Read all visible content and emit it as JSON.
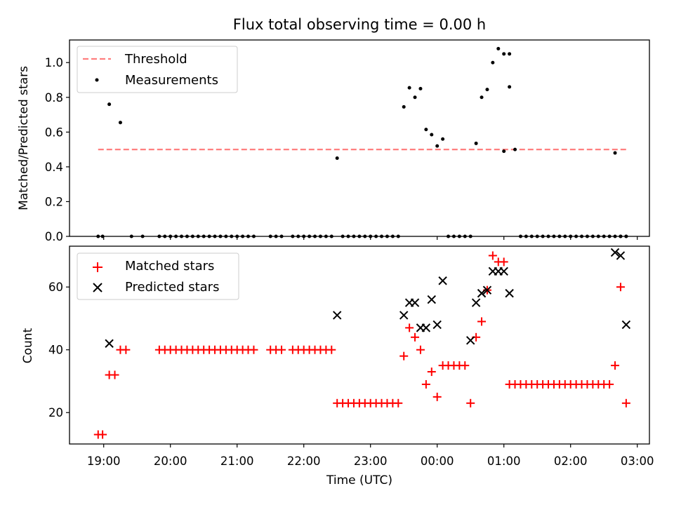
{
  "chart_data": [
    {
      "type": "scatter",
      "title": "Flux total observing time = 0.00 h",
      "xlabel": "",
      "ylabel": "Matched/Predicted stars",
      "ylim": [
        0,
        1.13
      ],
      "yticks": [
        "0.0",
        "0.2",
        "0.4",
        "0.6",
        "0.8",
        "1.0"
      ],
      "ytick_values": [
        0,
        0.2,
        0.4,
        0.6,
        0.8,
        1.0
      ],
      "legend_location": "upper-left",
      "colors": {
        "threshold": "#ff7f7f",
        "measurements": "#000000"
      },
      "series": [
        {
          "name": "Threshold",
          "style": "dashed-line",
          "x": [
            "18:55",
            "02:50"
          ],
          "y": [
            0.5,
            0.5
          ]
        },
        {
          "name": "Measurements",
          "style": "dot",
          "x": [
            "18:55",
            "18:59",
            "19:05",
            "19:15",
            "19:25",
            "19:35",
            "19:50",
            "19:55",
            "20:00",
            "20:05",
            "20:10",
            "20:15",
            "20:20",
            "20:25",
            "20:30",
            "20:35",
            "20:40",
            "20:45",
            "20:50",
            "20:55",
            "21:00",
            "21:05",
            "21:10",
            "21:15",
            "21:30",
            "21:35",
            "21:40",
            "21:50",
            "21:55",
            "22:00",
            "22:05",
            "22:10",
            "22:15",
            "22:20",
            "22:25",
            "22:30",
            "22:35",
            "22:40",
            "22:45",
            "22:50",
            "22:55",
            "23:00",
            "23:05",
            "23:10",
            "23:15",
            "23:20",
            "23:25",
            "23:30",
            "23:35",
            "23:40",
            "23:45",
            "23:50",
            "23:55",
            "00:00",
            "00:05",
            "00:10",
            "00:15",
            "00:20",
            "00:25",
            "00:30",
            "00:35",
            "00:40",
            "00:45",
            "00:50",
            "00:55",
            "01:00",
            "01:05",
            "01:10",
            "01:15",
            "01:20",
            "01:25",
            "01:30",
            "01:35",
            "01:40",
            "01:45",
            "01:50",
            "01:55",
            "02:00",
            "02:05",
            "02:10",
            "02:15",
            "02:20",
            "02:25",
            "02:30",
            "02:35",
            "02:40",
            "02:45",
            "02:50",
            "01:00",
            "01:05",
            "02:40",
            "02:45",
            "02:50"
          ],
          "y": [
            0,
            0,
            0.76,
            0.655,
            0,
            0,
            0,
            0,
            0,
            0,
            0,
            0,
            0,
            0,
            0,
            0,
            0,
            0,
            0,
            0,
            0,
            0,
            0,
            0,
            0,
            0,
            0,
            0,
            0,
            0,
            0,
            0,
            0,
            0,
            0,
            0.45,
            0,
            0,
            0,
            0,
            0,
            0,
            0,
            0,
            0,
            0,
            0,
            0.745,
            0.855,
            0.8,
            0.85,
            0.615,
            0.585,
            0.52,
            0.56,
            0,
            0,
            0,
            0,
            0,
            0.535,
            0.8,
            0.845,
            1.0,
            1.08,
            1.05,
            1.05,
            0.5,
            0,
            0,
            0,
            0,
            0,
            0,
            0,
            0,
            0,
            0,
            0,
            0,
            0,
            0,
            0,
            0,
            0,
            0,
            0,
            0,
            0.49,
            0.86,
            0.48,
            0,
            0
          ]
        }
      ]
    },
    {
      "type": "scatter",
      "title": "",
      "xlabel": "Time (UTC)",
      "ylabel": "Count",
      "ylim": [
        10,
        73
      ],
      "yticks": [
        "20",
        "40",
        "60"
      ],
      "ytick_values": [
        20,
        40,
        60
      ],
      "xticks": [
        "19:00",
        "20:00",
        "21:00",
        "22:00",
        "23:00",
        "00:00",
        "01:00",
        "02:00",
        "03:00"
      ],
      "legend_location": "upper-left",
      "colors": {
        "matched": "#ff0000",
        "predicted": "#000000"
      },
      "series": [
        {
          "name": "Matched stars",
          "marker": "+",
          "x": [
            "18:55",
            "18:59",
            "19:05",
            "19:10",
            "19:15",
            "19:20",
            "19:50",
            "19:55",
            "20:00",
            "20:05",
            "20:10",
            "20:15",
            "20:20",
            "20:25",
            "20:30",
            "20:35",
            "20:40",
            "20:45",
            "20:50",
            "20:55",
            "21:00",
            "21:05",
            "21:10",
            "21:15",
            "21:30",
            "21:35",
            "21:40",
            "21:50",
            "21:55",
            "22:00",
            "22:05",
            "22:10",
            "22:15",
            "22:20",
            "22:25",
            "22:30",
            "22:35",
            "22:40",
            "22:45",
            "22:50",
            "22:55",
            "23:00",
            "23:05",
            "23:10",
            "23:15",
            "23:20",
            "23:25",
            "23:30",
            "23:35",
            "23:40",
            "23:45",
            "23:50",
            "23:55",
            "00:00",
            "00:05",
            "00:10",
            "00:15",
            "00:20",
            "00:25",
            "00:30",
            "00:35",
            "00:40",
            "00:45",
            "00:50",
            "00:55",
            "01:00",
            "01:05",
            "01:10",
            "01:15",
            "01:20",
            "01:25",
            "01:30",
            "01:35",
            "01:40",
            "01:45",
            "01:50",
            "01:55",
            "02:00",
            "02:05",
            "02:10",
            "02:15",
            "02:20",
            "02:25",
            "02:30",
            "02:35",
            "02:40",
            "02:45",
            "02:50"
          ],
          "y": [
            13,
            13,
            32,
            32,
            40,
            40,
            40,
            40,
            40,
            40,
            40,
            40,
            40,
            40,
            40,
            40,
            40,
            40,
            40,
            40,
            40,
            40,
            40,
            40,
            40,
            40,
            40,
            40,
            40,
            40,
            40,
            40,
            40,
            40,
            40,
            23,
            23,
            23,
            23,
            23,
            23,
            23,
            23,
            23,
            23,
            23,
            23,
            38,
            47,
            44,
            40,
            29,
            33,
            25,
            35,
            35,
            35,
            35,
            35,
            23,
            44,
            49,
            59,
            70,
            68,
            68,
            29,
            29,
            29,
            29,
            29,
            29,
            29,
            29,
            29,
            29,
            29,
            29,
            29,
            29,
            29,
            29,
            29,
            29,
            29,
            35,
            60,
            23
          ]
        },
        {
          "name": "Predicted stars",
          "marker": "x",
          "x": [
            "19:05",
            "22:30",
            "23:30",
            "23:35",
            "23:40",
            "23:45",
            "23:50",
            "23:55",
            "00:00",
            "00:05",
            "00:30",
            "00:35",
            "00:40",
            "00:45",
            "00:50",
            "00:55",
            "01:00",
            "01:05",
            "02:40",
            "02:45",
            "02:50"
          ],
          "y": [
            42,
            51,
            51,
            55,
            55,
            47,
            47,
            56,
            48,
            62,
            43,
            55,
            58,
            59,
            65,
            65,
            65,
            58,
            71,
            70,
            48
          ]
        }
      ]
    }
  ]
}
